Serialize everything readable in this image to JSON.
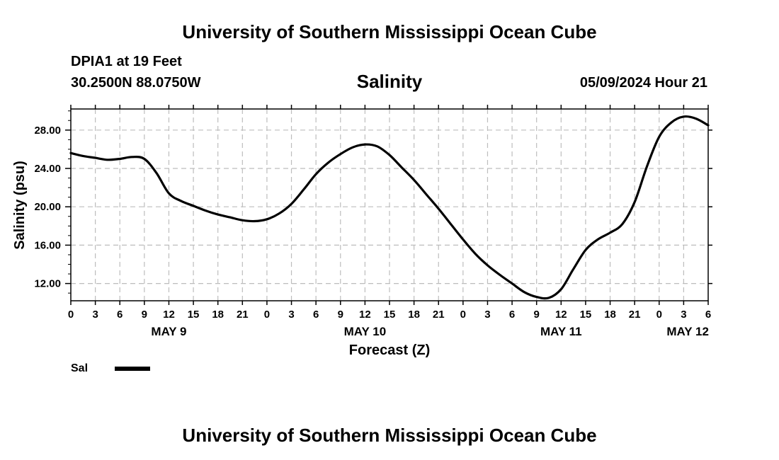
{
  "header": {
    "title": "University of Southern Mississippi Ocean Cube",
    "station": "DPIA1 at 19 Feet",
    "coords": "30.2500N  88.0750W",
    "datetime": "05/09/2024 Hour 21"
  },
  "footer": {
    "title": "University of Southern Mississippi Ocean Cube"
  },
  "chart_data": {
    "type": "line",
    "title": "Salinity",
    "xlabel": "Forecast (Z)",
    "ylabel": "Salinity (psu)",
    "xlim": [
      0,
      78
    ],
    "ylim": [
      10.2,
      30.2
    ],
    "yticks": [
      12,
      16,
      20,
      24,
      28
    ],
    "ytick_labels": [
      "12.00",
      "16.00",
      "20.00",
      "24.00",
      "28.00"
    ],
    "xticks": [
      0,
      3,
      6,
      9,
      12,
      15,
      18,
      21,
      24,
      27,
      30,
      33,
      36,
      39,
      42,
      45,
      48,
      51,
      54,
      57,
      60,
      63,
      66,
      69,
      72,
      75,
      78
    ],
    "xtick_labels": [
      "0",
      "3",
      "6",
      "9",
      "12",
      "15",
      "18",
      "21",
      "0",
      "3",
      "6",
      "9",
      "12",
      "15",
      "18",
      "21",
      "0",
      "3",
      "6",
      "9",
      "12",
      "15",
      "18",
      "21",
      "0",
      "3",
      "6"
    ],
    "day_labels": [
      {
        "label": "MAY 9",
        "x": 12
      },
      {
        "label": "MAY 10",
        "x": 36
      },
      {
        "label": "MAY 11",
        "x": 60
      },
      {
        "label": "MAY 12",
        "x": 75.5
      }
    ],
    "grid": true,
    "legend_position": "bottom-left",
    "series": [
      {
        "name": "Sal",
        "color": "#000000",
        "x": [
          0,
          1.5,
          3,
          4.5,
          6,
          7.5,
          9,
          10.5,
          12,
          13.5,
          15,
          16.5,
          18,
          19.5,
          21,
          22.5,
          24,
          25.5,
          27,
          28.5,
          30,
          31.5,
          33,
          34.5,
          36,
          37.5,
          39,
          40.5,
          42,
          43.5,
          45,
          46.5,
          48,
          49.5,
          51,
          52.5,
          54,
          55.5,
          57,
          58.5,
          60,
          61.5,
          63,
          64.5,
          66,
          67.5,
          69,
          70.5,
          72,
          73.5,
          75,
          76.5,
          78
        ],
        "y": [
          25.6,
          25.3,
          25.1,
          24.9,
          25.0,
          25.2,
          25.0,
          23.5,
          21.4,
          20.6,
          20.1,
          19.6,
          19.2,
          18.9,
          18.6,
          18.5,
          18.7,
          19.3,
          20.3,
          21.8,
          23.4,
          24.6,
          25.5,
          26.2,
          26.5,
          26.3,
          25.4,
          24.1,
          22.8,
          21.3,
          19.8,
          18.2,
          16.6,
          15.1,
          13.9,
          12.9,
          12.0,
          11.1,
          10.6,
          10.5,
          11.4,
          13.5,
          15.5,
          16.6,
          17.3,
          18.2,
          20.5,
          24.2,
          27.3,
          28.8,
          29.4,
          29.2,
          28.5
        ]
      }
    ]
  }
}
